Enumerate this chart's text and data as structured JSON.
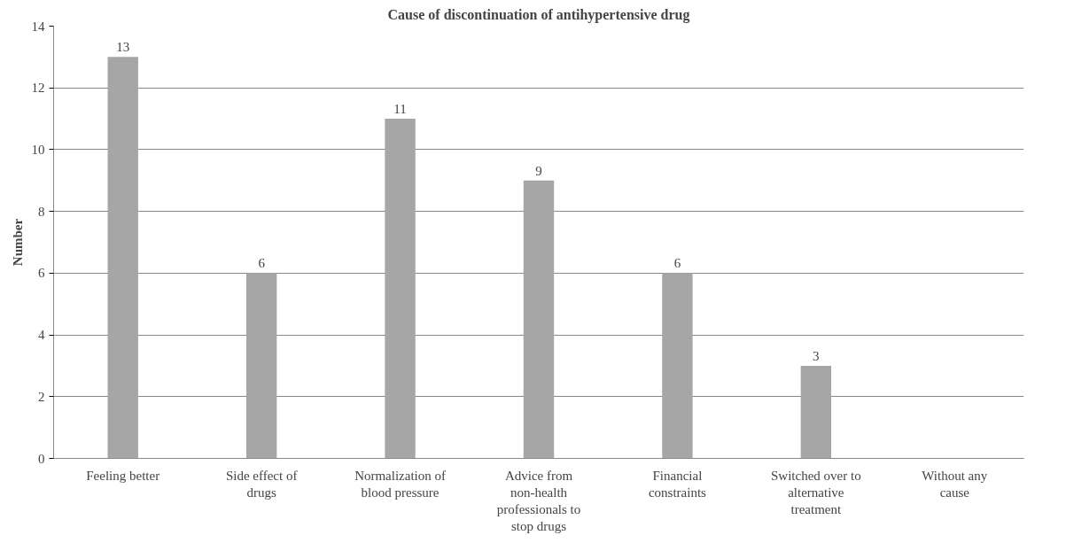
{
  "chart_data": {
    "type": "bar",
    "title": "Cause of discontinuation of antihypertensive drug",
    "ylabel": "Number",
    "categories": [
      "Feeling better",
      "Side effect of drugs",
      "Normalization of blood pressure",
      "Advice from non-health professionals to stop drugs",
      "Financial constraints",
      "Switched over to alternative treatment",
      "Without any cause"
    ],
    "values": [
      13,
      6,
      11,
      9,
      6,
      3,
      0
    ],
    "value_labels": [
      "13",
      "6",
      "11",
      "9",
      "6",
      "3",
      null
    ],
    "color": "#a6a6a6",
    "ylim": [
      0,
      14
    ],
    "yticks": [
      0,
      2,
      4,
      6,
      8,
      10,
      12,
      14
    ],
    "grid": "y"
  }
}
